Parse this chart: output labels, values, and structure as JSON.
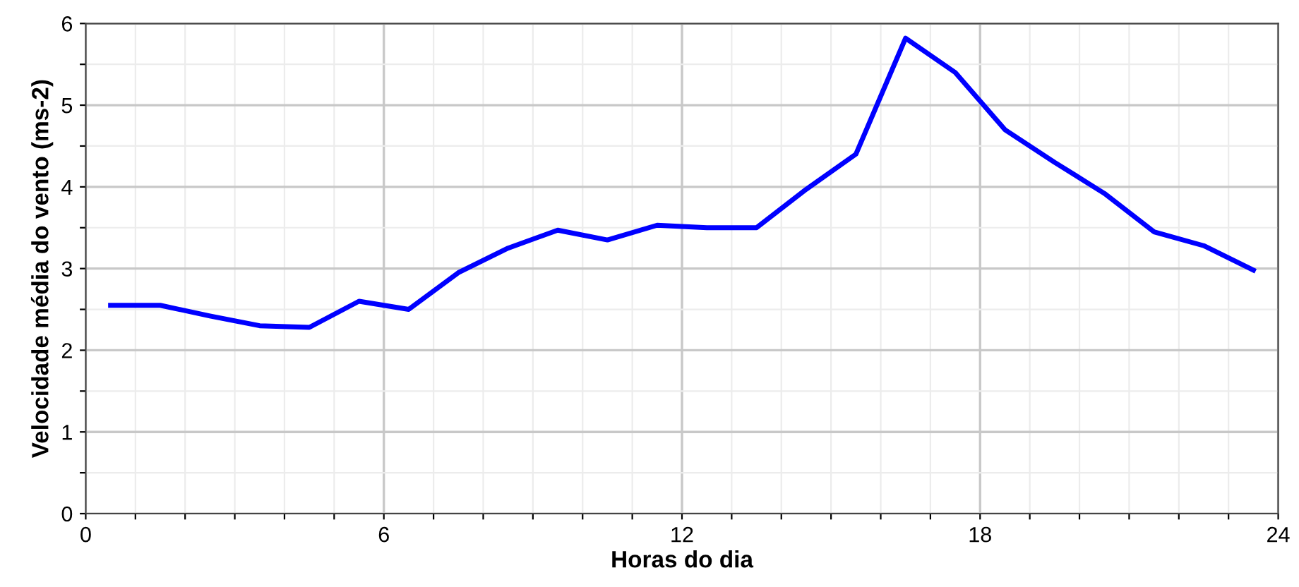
{
  "chart_data": {
    "type": "line",
    "xlabel": "Horas do dia",
    "ylabel": "Velocidade média do vento (ms-2)",
    "x": [
      0.5,
      1.5,
      2.5,
      3.5,
      4.5,
      5.5,
      6.5,
      7.5,
      8.5,
      9.5,
      10.5,
      11.5,
      12.5,
      13.5,
      14.5,
      15.5,
      16.5,
      17.5,
      18.5,
      19.5,
      20.5,
      21.5,
      22.5,
      23.5
    ],
    "series": [
      {
        "color": "#0000ff",
        "values": [
          2.55,
          2.55,
          2.42,
          2.3,
          2.28,
          2.6,
          2.5,
          2.95,
          3.25,
          3.47,
          3.35,
          3.53,
          3.5,
          3.5,
          3.97,
          4.4,
          5.82,
          5.4,
          4.7,
          4.3,
          3.92,
          3.45,
          3.28,
          2.98
        ]
      }
    ],
    "xlim": [
      0,
      24
    ],
    "ylim": [
      0,
      6
    ],
    "xticks": [
      0,
      {
        "value": 1,
        "label": null
      },
      {
        "value": 2,
        "label": null
      },
      {
        "value": 3,
        "label": null
      },
      {
        "value": 4,
        "label": null
      },
      {
        "value": 5,
        "label": null
      },
      6,
      {
        "value": 7,
        "label": null
      },
      {
        "value": 8,
        "label": null
      },
      {
        "value": 9,
        "label": null
      },
      {
        "value": 10,
        "label": null
      },
      {
        "value": 11,
        "label": null
      },
      12,
      {
        "value": 13,
        "label": null
      },
      {
        "value": 14,
        "label": null
      },
      {
        "value": 15,
        "label": null
      },
      {
        "value": 16,
        "label": null
      },
      {
        "value": 17,
        "label": null
      },
      18,
      {
        "value": 19,
        "label": null
      },
      {
        "value": 20,
        "label": null
      },
      {
        "value": 21,
        "label": null
      },
      {
        "value": 22,
        "label": null
      },
      {
        "value": 23,
        "label": null
      },
      24
    ],
    "yticks": [
      0,
      {
        "value": 0.5,
        "label": null
      },
      1,
      {
        "value": 1.5,
        "label": null
      },
      2,
      {
        "value": 2.5,
        "label": null
      },
      3,
      {
        "value": 3.5,
        "label": null
      },
      4,
      {
        "value": 4.5,
        "label": null
      },
      5,
      {
        "value": 5.5,
        "label": null
      },
      6
    ],
    "grid": true,
    "line_style": "solid",
    "marker": "none"
  }
}
